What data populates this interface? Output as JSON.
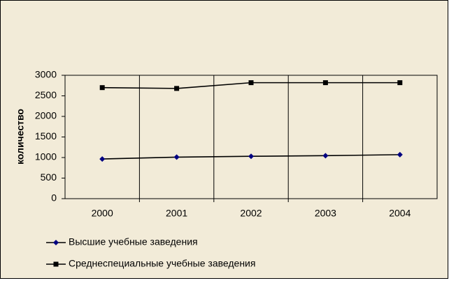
{
  "chart_data": {
    "type": "line",
    "y_label": "количество",
    "categories": [
      "2000",
      "2001",
      "2002",
      "2003",
      "2004"
    ],
    "series": [
      {
        "name": "Высшие учебные заведения",
        "color": "#000080",
        "marker": "diamond",
        "values": [
          965,
          1010,
          1030,
          1045,
          1070
        ]
      },
      {
        "name": "Среднеспециальные учебные заведения",
        "color": "#000000",
        "marker": "square",
        "values": [
          2700,
          2680,
          2820,
          2820,
          2820
        ]
      }
    ],
    "ylim": [
      0,
      3000
    ],
    "yticks": [
      0,
      500,
      1000,
      1500,
      2000,
      2500,
      3000
    ]
  }
}
